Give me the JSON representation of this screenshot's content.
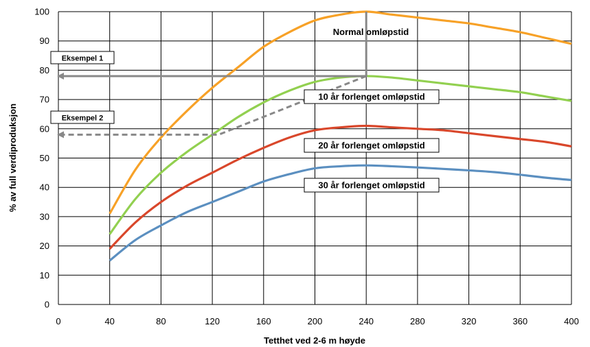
{
  "chart_data": {
    "type": "line",
    "xlabel": "Tetthet ved 2-6 m høyde",
    "ylabel": "% av full verdiproduksjon",
    "xlim": [
      0,
      400
    ],
    "ylim": [
      0,
      100
    ],
    "x_ticks": [
      0,
      40,
      80,
      120,
      160,
      200,
      240,
      280,
      320,
      360,
      400
    ],
    "y_ticks": [
      0,
      10,
      20,
      30,
      40,
      50,
      60,
      70,
      80,
      90,
      100
    ],
    "grid": true,
    "series": [
      {
        "name": "Normal omløpstid",
        "color": "#F7A127",
        "x": [
          40,
          60,
          80,
          100,
          120,
          140,
          160,
          180,
          200,
          220,
          240,
          260,
          280,
          300,
          320,
          340,
          360,
          380,
          400
        ],
        "y": [
          31,
          46,
          57,
          66,
          74,
          81,
          88,
          93,
          97,
          99,
          100,
          99,
          98,
          97,
          96,
          94.5,
          93,
          91,
          89
        ]
      },
      {
        "name": "10 år forlenget omløpstid",
        "color": "#92D050",
        "x": [
          40,
          60,
          80,
          100,
          120,
          140,
          160,
          180,
          200,
          220,
          240,
          260,
          280,
          300,
          320,
          340,
          360,
          380,
          400
        ],
        "y": [
          24,
          36,
          45,
          52,
          58,
          64,
          69,
          73,
          76,
          77.5,
          78,
          77.5,
          76.5,
          75.5,
          74.5,
          73.5,
          72.5,
          71,
          69.5
        ]
      },
      {
        "name": "20 år forlenget omløpstid",
        "color": "#D9472B",
        "x": [
          40,
          60,
          80,
          100,
          120,
          140,
          160,
          180,
          200,
          220,
          240,
          260,
          280,
          300,
          320,
          340,
          360,
          380,
          400
        ],
        "y": [
          19,
          28,
          35,
          40.5,
          45,
          49.5,
          53.5,
          57,
          59.5,
          60.5,
          61,
          60.5,
          60,
          59.5,
          58.5,
          57.5,
          56.5,
          55.5,
          54
        ]
      },
      {
        "name": "30 år forlenget omløpstid",
        "color": "#5B8FC0",
        "x": [
          40,
          60,
          80,
          100,
          120,
          140,
          160,
          180,
          200,
          220,
          240,
          260,
          280,
          300,
          320,
          340,
          360,
          380,
          400
        ],
        "y": [
          15,
          22,
          27,
          31.5,
          35,
          38.5,
          42,
          44.5,
          46.5,
          47.2,
          47.5,
          47.2,
          46.8,
          46.3,
          45.8,
          45.2,
          44.3,
          43.3,
          42.5
        ]
      }
    ],
    "annotations": {
      "normal_label": "Normal omløpstid",
      "example1": {
        "label": "Eksempel 1",
        "path_x": [
          240,
          240,
          0
        ],
        "path_y": [
          100,
          78,
          78
        ]
      },
      "example2": {
        "label": "Eksempel 2",
        "path_x": [
          240,
          125,
          0
        ],
        "path_y": [
          78,
          58,
          58
        ]
      }
    },
    "arrow_color": "#888888"
  }
}
